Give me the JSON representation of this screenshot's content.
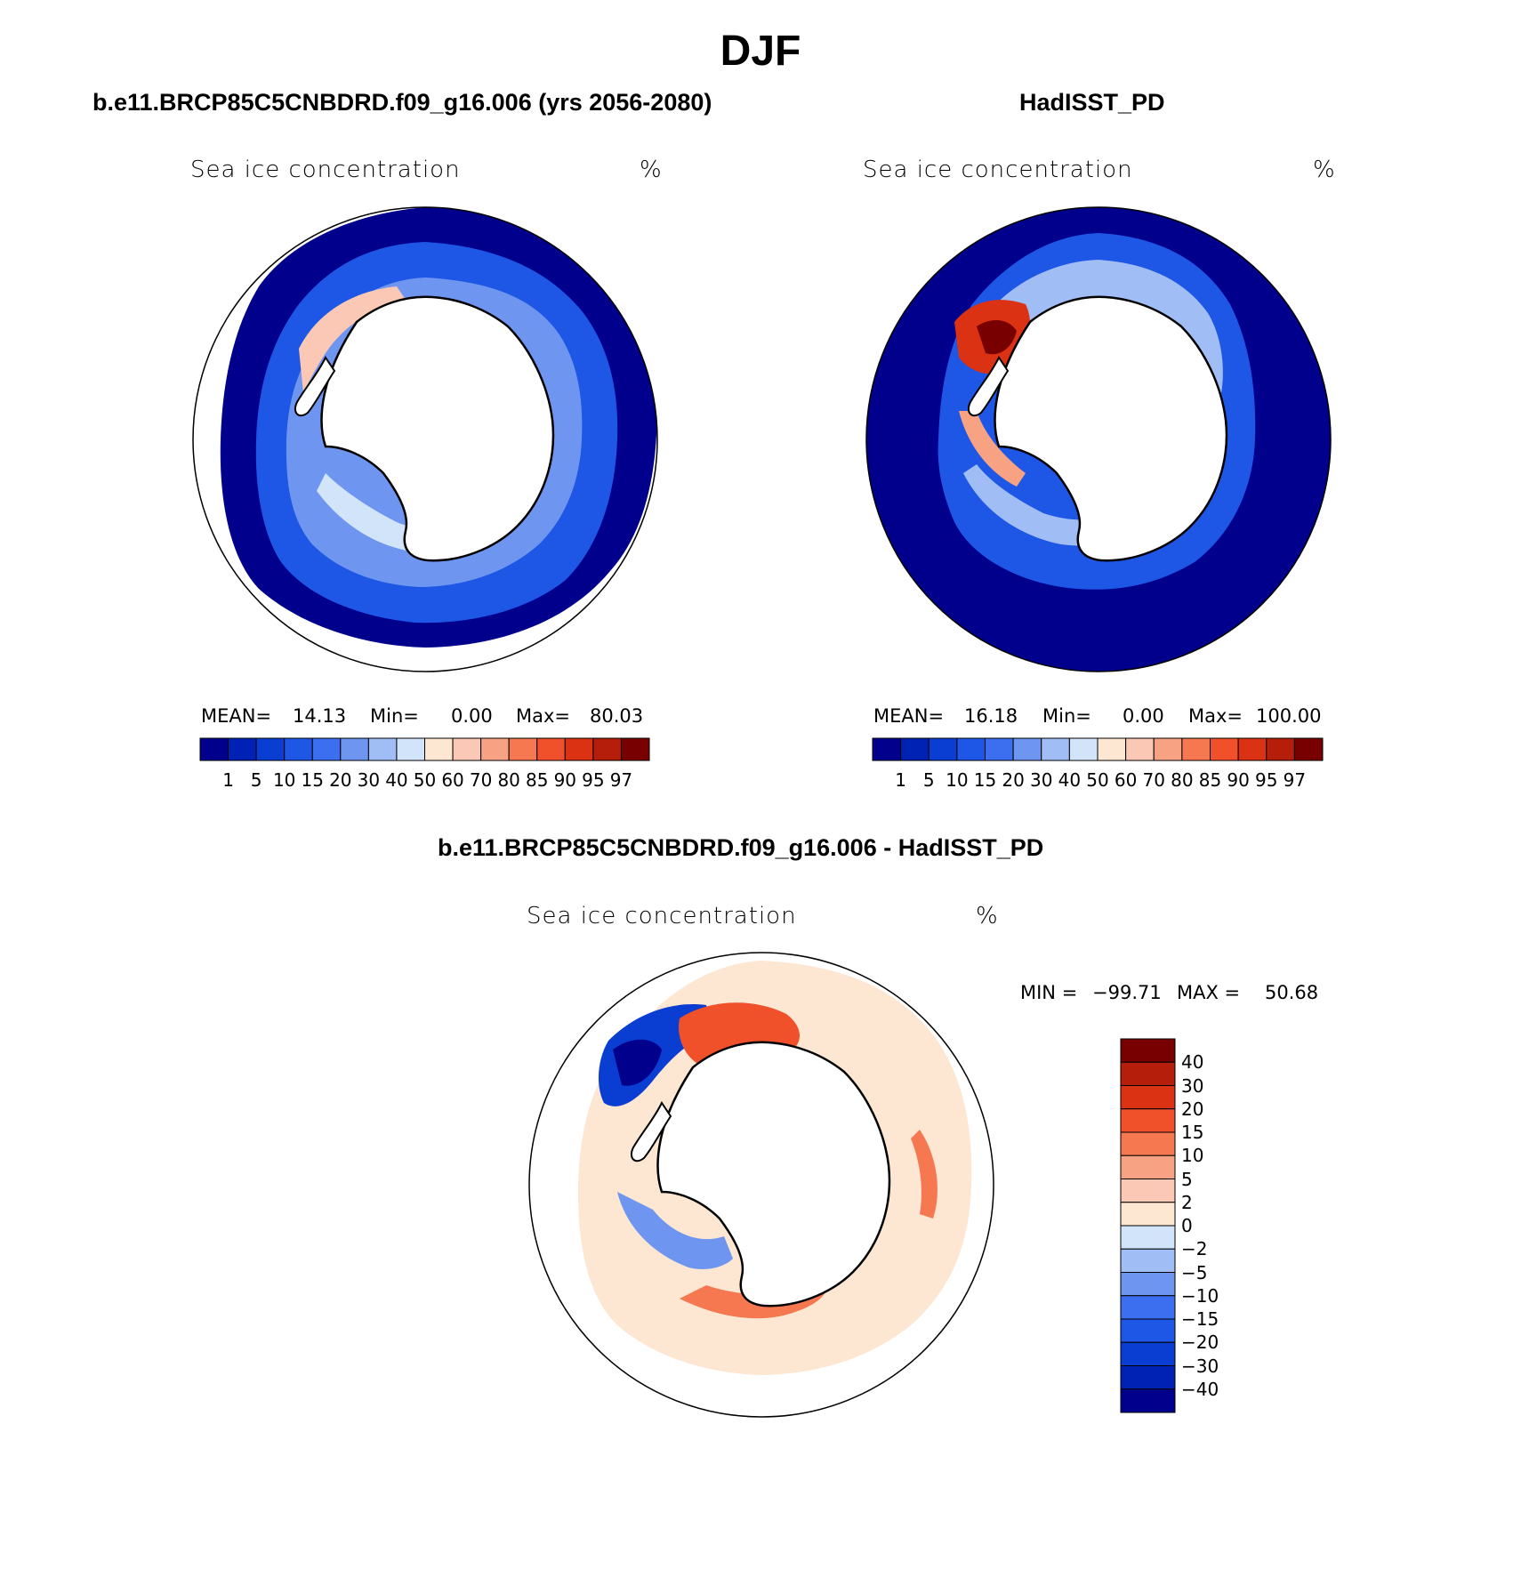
{
  "figure_title": "DJF",
  "panels": {
    "model": {
      "title": "b.e11.BRCP85C5CNBDRD.f09_g16.006 (yrs 2056-2080)",
      "variable": "Sea ice concentration",
      "units": "%",
      "stats": {
        "mean_label": "MEAN=",
        "mean": "14.13",
        "min_label": "Min=",
        "min": "0.00",
        "max_label": "Max=",
        "max": "80.03"
      }
    },
    "obs": {
      "title": "HadISST_PD",
      "variable": "Sea ice concentration",
      "units": "%",
      "stats": {
        "mean_label": "MEAN=",
        "mean": "16.18",
        "min_label": "Min=",
        "min": "0.00",
        "max_label": "Max=",
        "max": "100.00"
      }
    },
    "diff": {
      "title": "b.e11.BRCP85C5CNBDRD.f09_g16.006 - HadISST_PD",
      "variable": "Sea ice concentration",
      "units": "%",
      "stats": {
        "min_label": "MIN =",
        "min": "−99.71",
        "max_label": "MAX =",
        "max": "50.68"
      }
    }
  },
  "concentration_colorbar": {
    "labels": [
      "1",
      "5",
      "10",
      "15",
      "20",
      "30",
      "40",
      "50",
      "60",
      "70",
      "80",
      "85",
      "90",
      "95",
      "97"
    ],
    "colors": [
      "#00008c",
      "#0022b4",
      "#0a3ed2",
      "#1e56e6",
      "#3c6ef0",
      "#6e96f0",
      "#a0bef5",
      "#d2e4fa",
      "#fde6d2",
      "#fac8b4",
      "#f7a282",
      "#f57850",
      "#f0502a",
      "#dc3214",
      "#b41e0a",
      "#780000"
    ]
  },
  "difference_colorbar": {
    "labels": [
      "40",
      "30",
      "20",
      "15",
      "10",
      "5",
      "2",
      "0",
      "−2",
      "−5",
      "−10",
      "−15",
      "−20",
      "−30",
      "−40"
    ],
    "colors": [
      "#780000",
      "#b41e0a",
      "#dc3214",
      "#f0502a",
      "#f57850",
      "#f7a282",
      "#fac8b4",
      "#fde6d2",
      "#d2e4fa",
      "#a0bef5",
      "#6e96f0",
      "#3c6ef0",
      "#1e56e6",
      "#0a3ed2",
      "#0022b4",
      "#00008c"
    ]
  }
}
